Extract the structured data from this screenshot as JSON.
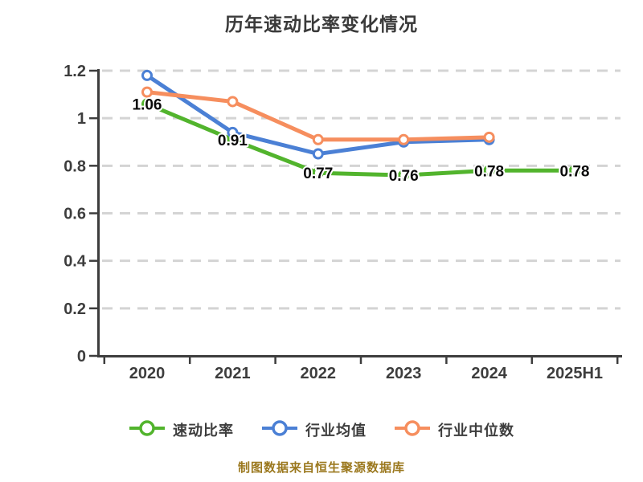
{
  "title": "历年速动比率变化情况",
  "chart_data": {
    "type": "line",
    "title": "历年速动比率变化情况",
    "categories": [
      "2020",
      "2021",
      "2022",
      "2023",
      "2024",
      "2025H1"
    ],
    "series": [
      {
        "name": "速动比率",
        "color": "#52b42d",
        "values": [
          1.06,
          0.91,
          0.77,
          0.76,
          0.78,
          0.78
        ],
        "point_labels": [
          "1.06",
          "0.91",
          "0.77",
          "0.76",
          "0.78",
          "0.78"
        ]
      },
      {
        "name": "行业均值",
        "color": "#4b80d5",
        "values": [
          1.18,
          0.94,
          0.85,
          0.9,
          0.91,
          null
        ],
        "point_labels": []
      },
      {
        "name": "行业中位数",
        "color": "#f68e5e",
        "values": [
          1.11,
          1.07,
          0.91,
          0.91,
          0.92,
          null
        ],
        "point_labels": []
      }
    ],
    "ylim": [
      0,
      1.2
    ],
    "yticks": [
      0,
      0.2,
      0.4,
      0.6,
      0.8,
      1,
      1.2
    ],
    "ytick_labels": [
      "0",
      "0.2",
      "0.4",
      "0.6",
      "0.8",
      "1",
      "1.2"
    ],
    "grid": "horizontal-dashed",
    "legend_position": "bottom",
    "styles": {
      "grid_color": "#d4d4d4",
      "axis_color": "#3d3d3d",
      "tick_label_color": "#3d3d3d",
      "point_label_color": "#0a0a0a",
      "marker_fill": "#ffffff",
      "background": "#ffffff"
    }
  },
  "footer": {
    "text": "制图数据来自恒生聚源数据库",
    "color": "#9b781e"
  }
}
